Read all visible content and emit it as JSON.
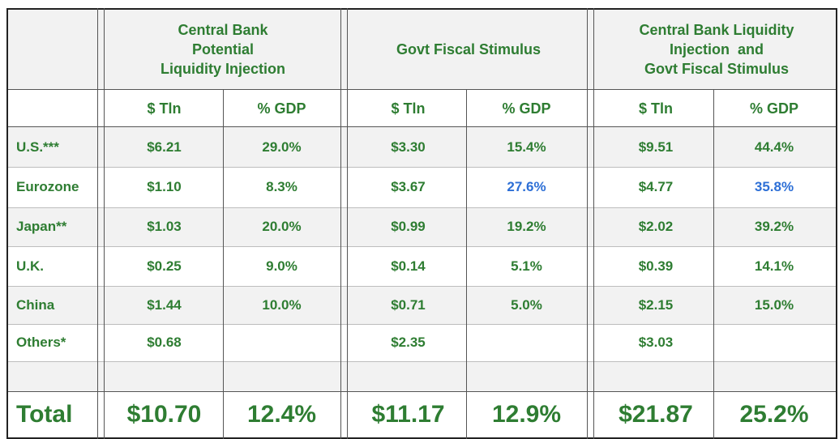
{
  "header": {
    "group1": [
      "Central Bank",
      "Potential",
      "Liquidity Injection"
    ],
    "group2": [
      "Govt Fiscal Stimulus"
    ],
    "group3": [
      "Central Bank Liquidity",
      "Injection  and",
      "Govt Fiscal Stimulus"
    ]
  },
  "subheader": {
    "c1": "$ Tln",
    "c2": "% GDP",
    "c3": "$ Tln",
    "c4": "% GDP",
    "c5": "$ Tln",
    "c6": "% GDP"
  },
  "rows": [
    {
      "label": "U.S.***",
      "v": [
        "$6.21",
        "29.0%",
        "$3.30",
        "15.4%",
        "$9.51",
        "44.4%"
      ]
    },
    {
      "label": "Eurozone",
      "v": [
        "$1.10",
        "8.3%",
        "$3.67",
        "27.6%",
        "$4.77",
        "35.8%"
      ]
    },
    {
      "label": "Japan**",
      "v": [
        "$1.03",
        "20.0%",
        "$0.99",
        "19.2%",
        "$2.02",
        "39.2%"
      ]
    },
    {
      "label": "U.K.",
      "v": [
        "$0.25",
        "9.0%",
        "$0.14",
        "5.1%",
        "$0.39",
        "14.1%"
      ]
    },
    {
      "label": "China",
      "v": [
        "$1.44",
        "10.0%",
        "$0.71",
        "5.0%",
        "$2.15",
        "15.0%"
      ]
    },
    {
      "label": "Others*",
      "v": [
        "$0.68",
        "",
        "$2.35",
        "",
        "$3.03",
        ""
      ]
    },
    {
      "label": "",
      "v": [
        "",
        "",
        "",
        "",
        "",
        ""
      ]
    }
  ],
  "total": {
    "label": "Total",
    "v": [
      "$10.70",
      "12.4%",
      "$11.17",
      "12.9%",
      "$21.87",
      "25.2%"
    ]
  },
  "colors": {
    "text": "#2e7d32",
    "highlight": "#2d6fd6",
    "shade": "#f2f2f2"
  },
  "highlighted_cells": [
    "Eurozone.c4",
    "Eurozone.c6"
  ]
}
